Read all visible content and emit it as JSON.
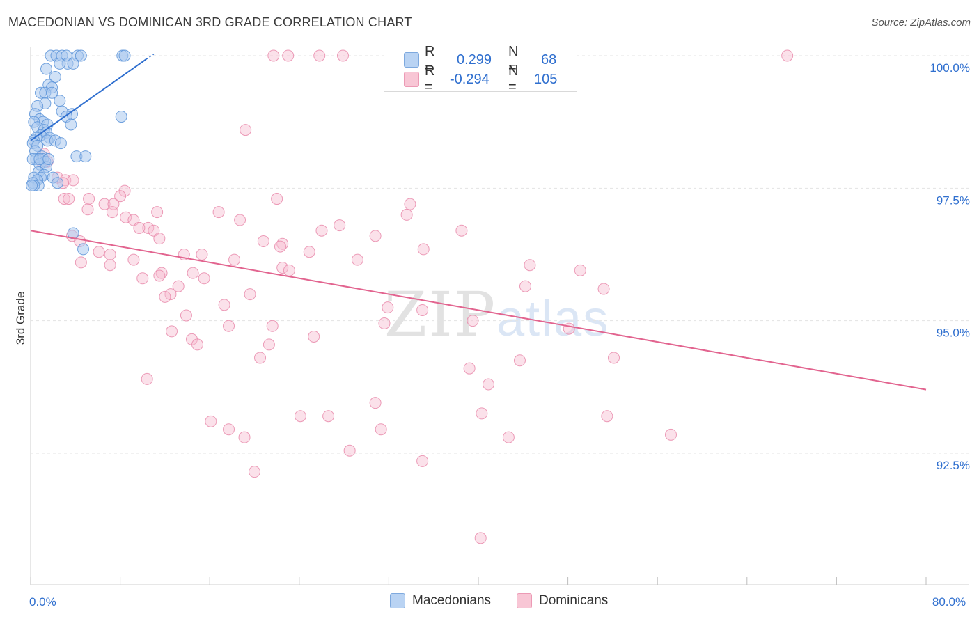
{
  "header": {
    "title": "MACEDONIAN VS DOMINICAN 3RD GRADE CORRELATION CHART",
    "source": "Source: ZipAtlas.com"
  },
  "legend": {
    "r_label": "R =",
    "n_label": "N =",
    "series1": {
      "r": "0.299",
      "n": "68"
    },
    "series2": {
      "r": "-0.294",
      "n": "105"
    }
  },
  "watermark": {
    "zip": "ZIP",
    "atlas": "atlas"
  },
  "colors": {
    "macedonian_fill": "#a9c8ef",
    "macedonian_stroke": "#5b93d8",
    "macedonian_line": "#2f6fcf",
    "dominican_fill": "#f6bcd0",
    "dominican_stroke": "#e98bab",
    "dominican_line": "#e2648f",
    "tick_label": "#2f6fcf",
    "grid": "#e3e3e3"
  },
  "chart_data": {
    "type": "scatter",
    "title": "MACEDONIAN VS DOMINICAN 3RD GRADE CORRELATION CHART",
    "xlabel": "",
    "ylabel": "3rd Grade",
    "xlim": [
      0,
      80
    ],
    "ylim": [
      90.1,
      100.4
    ],
    "x_tick_labels": [
      {
        "value": 0,
        "label": "0.0%"
      },
      {
        "value": 80,
        "label": "80.0%"
      }
    ],
    "x_minor_ticks": [
      0,
      8,
      16,
      24,
      32,
      40,
      48,
      56,
      64,
      72,
      80
    ],
    "y_ticks": [
      {
        "value": 100.0,
        "label": "100.0%"
      },
      {
        "value": 97.5,
        "label": "97.5%"
      },
      {
        "value": 95.0,
        "label": "95.0%"
      },
      {
        "value": 92.5,
        "label": "92.5%"
      }
    ],
    "series": [
      {
        "name": "Macedonians",
        "r": 0.299,
        "n": 68,
        "trend": {
          "x": [
            0,
            10.3
          ],
          "y": [
            98.4,
            99.93
          ]
        },
        "trend_dashed": {
          "x": [
            10.3,
            11.0
          ],
          "y": [
            99.93,
            100.03
          ]
        },
        "points": [
          [
            1.8,
            100.0
          ],
          [
            2.3,
            100.0
          ],
          [
            2.8,
            100.0
          ],
          [
            3.2,
            100.0
          ],
          [
            4.2,
            100.0
          ],
          [
            4.5,
            100.0
          ],
          [
            8.2,
            100.0
          ],
          [
            8.4,
            100.0
          ],
          [
            3.3,
            99.85
          ],
          [
            3.8,
            99.85
          ],
          [
            2.6,
            99.85
          ],
          [
            1.4,
            99.75
          ],
          [
            2.2,
            99.6
          ],
          [
            1.6,
            99.45
          ],
          [
            1.9,
            99.4
          ],
          [
            0.9,
            99.3
          ],
          [
            1.3,
            99.3
          ],
          [
            1.9,
            99.3
          ],
          [
            2.6,
            99.15
          ],
          [
            1.3,
            99.1
          ],
          [
            0.6,
            99.05
          ],
          [
            2.8,
            98.95
          ],
          [
            3.7,
            98.9
          ],
          [
            0.4,
            98.9
          ],
          [
            3.2,
            98.85
          ],
          [
            8.1,
            98.85
          ],
          [
            0.8,
            98.8
          ],
          [
            1.1,
            98.75
          ],
          [
            0.3,
            98.75
          ],
          [
            1.5,
            98.7
          ],
          [
            3.6,
            98.7
          ],
          [
            0.6,
            98.65
          ],
          [
            1.2,
            98.6
          ],
          [
            1.4,
            98.55
          ],
          [
            0.9,
            98.5
          ],
          [
            1.7,
            98.45
          ],
          [
            0.5,
            98.45
          ],
          [
            0.3,
            98.4
          ],
          [
            1.5,
            98.4
          ],
          [
            2.2,
            98.4
          ],
          [
            2.7,
            98.35
          ],
          [
            0.2,
            98.35
          ],
          [
            0.6,
            98.3
          ],
          [
            0.4,
            98.2
          ],
          [
            1.0,
            98.1
          ],
          [
            0.5,
            98.05
          ],
          [
            1.1,
            98.05
          ],
          [
            0.2,
            98.05
          ],
          [
            1.3,
            98.0
          ],
          [
            0.8,
            97.95
          ],
          [
            1.4,
            97.9
          ],
          [
            0.7,
            97.8
          ],
          [
            1.2,
            97.75
          ],
          [
            0.9,
            97.7
          ],
          [
            0.3,
            97.7
          ],
          [
            0.6,
            97.65
          ],
          [
            0.2,
            97.6
          ],
          [
            0.7,
            97.55
          ],
          [
            0.3,
            97.55
          ],
          [
            0.1,
            97.55
          ],
          [
            4.1,
            98.1
          ],
          [
            4.9,
            98.1
          ],
          [
            0.8,
            98.05
          ],
          [
            1.6,
            98.05
          ],
          [
            3.8,
            96.65
          ],
          [
            4.7,
            96.35
          ],
          [
            2.0,
            97.7
          ],
          [
            2.4,
            97.6
          ]
        ]
      },
      {
        "name": "Dominicans",
        "r": -0.294,
        "n": 105,
        "trend": {
          "x": [
            0,
            80
          ],
          "y": [
            96.7,
            93.7
          ]
        },
        "points": [
          [
            21.7,
            100.0
          ],
          [
            23.0,
            100.0
          ],
          [
            25.8,
            100.0
          ],
          [
            27.9,
            100.0
          ],
          [
            35.4,
            100.0
          ],
          [
            67.6,
            100.0
          ],
          [
            19.2,
            98.6
          ],
          [
            1.2,
            98.15
          ],
          [
            1.5,
            98.0
          ],
          [
            1.0,
            98.0
          ],
          [
            2.4,
            97.7
          ],
          [
            3.1,
            97.65
          ],
          [
            3.8,
            97.65
          ],
          [
            2.9,
            97.6
          ],
          [
            8.4,
            97.45
          ],
          [
            8.0,
            97.35
          ],
          [
            3.0,
            97.3
          ],
          [
            5.2,
            97.3
          ],
          [
            3.4,
            97.3
          ],
          [
            6.6,
            97.2
          ],
          [
            7.4,
            97.2
          ],
          [
            22.0,
            97.3
          ],
          [
            5.1,
            97.1
          ],
          [
            11.3,
            97.05
          ],
          [
            7.3,
            97.05
          ],
          [
            16.8,
            97.05
          ],
          [
            8.5,
            96.95
          ],
          [
            18.7,
            96.9
          ],
          [
            9.2,
            96.9
          ],
          [
            33.6,
            97.0
          ],
          [
            33.9,
            97.2
          ],
          [
            10.5,
            96.75
          ],
          [
            11.0,
            96.7
          ],
          [
            9.7,
            96.75
          ],
          [
            30.8,
            96.6
          ],
          [
            38.5,
            96.7
          ],
          [
            11.5,
            96.55
          ],
          [
            3.7,
            96.6
          ],
          [
            20.8,
            96.5
          ],
          [
            22.5,
            96.45
          ],
          [
            4.4,
            96.5
          ],
          [
            7.1,
            96.25
          ],
          [
            6.1,
            96.3
          ],
          [
            24.9,
            96.3
          ],
          [
            35.1,
            96.35
          ],
          [
            13.7,
            96.25
          ],
          [
            15.3,
            96.25
          ],
          [
            9.2,
            96.15
          ],
          [
            18.2,
            96.15
          ],
          [
            29.2,
            96.15
          ],
          [
            4.5,
            96.1
          ],
          [
            7.1,
            96.05
          ],
          [
            44.6,
            96.05
          ],
          [
            22.5,
            96.0
          ],
          [
            23.1,
            95.95
          ],
          [
            11.7,
            95.9
          ],
          [
            49.1,
            95.95
          ],
          [
            14.5,
            95.9
          ],
          [
            11.5,
            95.85
          ],
          [
            10.0,
            95.8
          ],
          [
            15.5,
            95.8
          ],
          [
            13.2,
            95.65
          ],
          [
            44.2,
            95.65
          ],
          [
            51.2,
            95.6
          ],
          [
            12.5,
            95.5
          ],
          [
            12.0,
            95.45
          ],
          [
            19.6,
            95.5
          ],
          [
            17.3,
            95.3
          ],
          [
            31.9,
            95.25
          ],
          [
            35.0,
            95.2
          ],
          [
            13.9,
            95.1
          ],
          [
            31.6,
            94.95
          ],
          [
            39.5,
            95.0
          ],
          [
            17.7,
            94.9
          ],
          [
            21.6,
            94.9
          ],
          [
            48.1,
            94.85
          ],
          [
            12.6,
            94.8
          ],
          [
            25.3,
            94.7
          ],
          [
            14.4,
            94.65
          ],
          [
            14.9,
            94.55
          ],
          [
            21.3,
            94.55
          ],
          [
            20.5,
            94.3
          ],
          [
            52.1,
            94.3
          ],
          [
            43.7,
            94.25
          ],
          [
            39.2,
            94.1
          ],
          [
            10.4,
            93.9
          ],
          [
            40.9,
            93.8
          ],
          [
            30.8,
            93.45
          ],
          [
            40.3,
            93.25
          ],
          [
            24.1,
            93.2
          ],
          [
            26.6,
            93.2
          ],
          [
            16.1,
            93.1
          ],
          [
            51.5,
            93.2
          ],
          [
            31.3,
            92.95
          ],
          [
            17.7,
            92.95
          ],
          [
            19.1,
            92.8
          ],
          [
            42.7,
            92.8
          ],
          [
            57.2,
            92.85
          ],
          [
            28.5,
            92.55
          ],
          [
            35.0,
            92.35
          ],
          [
            20.0,
            92.15
          ],
          [
            40.2,
            90.9
          ],
          [
            22.3,
            96.4
          ],
          [
            26.0,
            96.7
          ],
          [
            27.6,
            96.8
          ]
        ]
      }
    ]
  },
  "bottom_legend": {
    "item1": "Macedonians",
    "item2": "Dominicans"
  }
}
